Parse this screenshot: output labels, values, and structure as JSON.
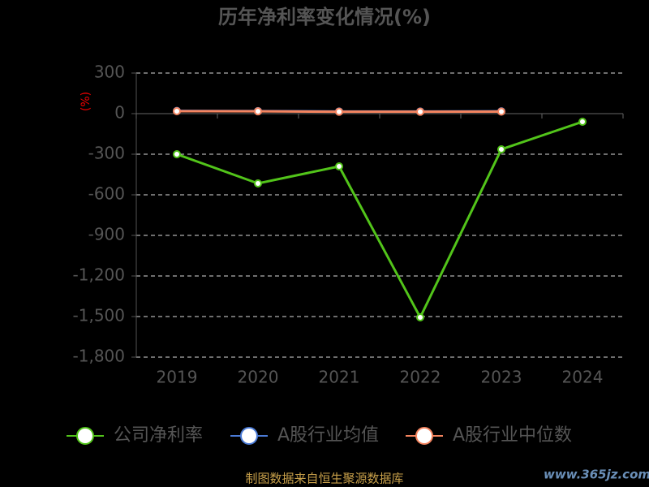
{
  "chart_data": {
    "type": "line",
    "title": "历年净利率变化情况(%)",
    "y_label": "(%)",
    "categories": [
      "2019",
      "2020",
      "2021",
      "2022",
      "2023",
      "2024"
    ],
    "series": [
      {
        "name": "公司净利率",
        "color": "#52c41a",
        "values": [
          -300,
          -516,
          -390,
          -1506,
          -264,
          -60
        ]
      },
      {
        "name": "A股行业均值",
        "color": "#4b7bd6",
        "values": [
          20,
          19,
          16,
          16,
          17,
          null
        ]
      },
      {
        "name": "A股行业中位数",
        "color": "#f4845f",
        "values": [
          18,
          17,
          14,
          14,
          15,
          null
        ]
      }
    ],
    "ylim": [
      -1800,
      300
    ],
    "yticks": [
      300,
      0,
      -300,
      -600,
      -900,
      {
        "value": -1200,
        "label": "-1,200"
      },
      {
        "value": -1500,
        "label": "-1,500"
      },
      {
        "value": -1800,
        "label": "-1,800"
      }
    ],
    "grid": true,
    "legend": "bottom",
    "source": "制图数据来自恒生聚源数据库",
    "watermark": "www.365jz.com"
  }
}
